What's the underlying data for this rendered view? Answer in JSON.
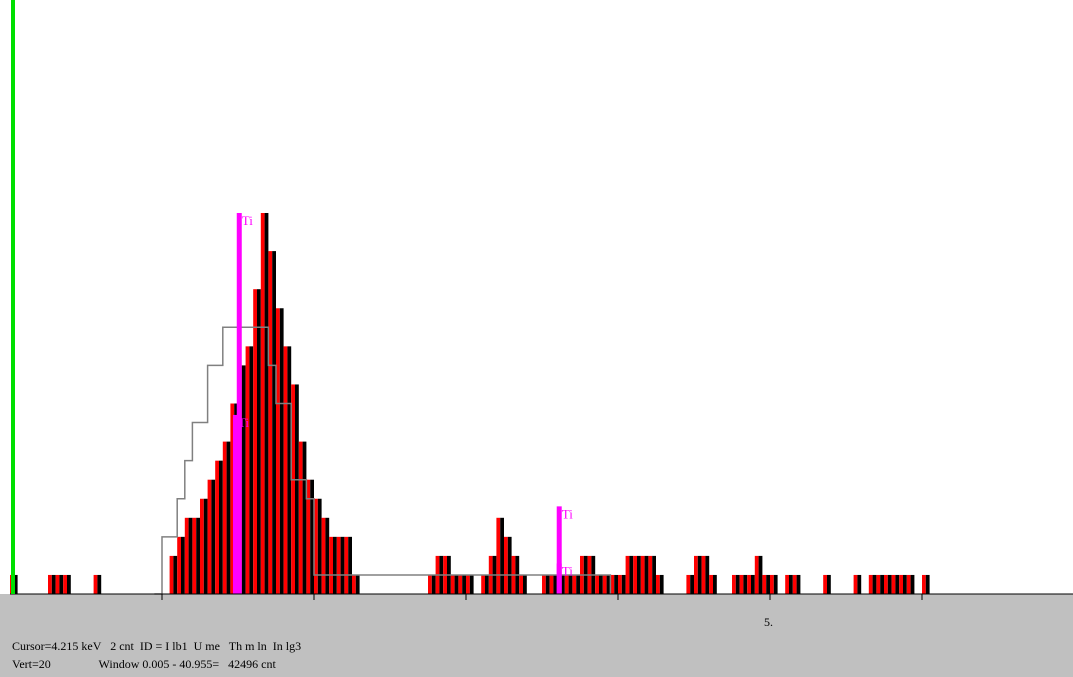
{
  "chart_data": {
    "type": "bar",
    "x_range_keV": [
      0.0,
      5.0
    ],
    "bin_width_keV": 0.05,
    "y_max_counts": 20,
    "spectrum_counts": [
      1,
      0,
      0,
      0,
      0,
      1,
      1,
      1,
      0,
      0,
      0,
      1,
      0,
      0,
      0,
      0,
      0,
      0,
      0,
      0,
      0,
      2,
      3,
      4,
      4,
      5,
      6,
      7,
      8,
      10,
      12,
      13,
      16,
      20,
      18,
      15,
      13,
      11,
      8,
      6,
      5,
      4,
      3,
      3,
      3,
      1,
      0,
      0,
      0,
      0,
      0,
      0,
      0,
      0,
      0,
      1,
      2,
      2,
      1,
      1,
      1,
      0,
      1,
      2,
      4,
      3,
      2,
      1,
      0,
      0,
      1,
      1,
      1,
      1,
      1,
      2,
      2,
      1,
      1,
      1,
      1,
      2,
      2,
      2,
      2,
      1,
      0,
      0,
      0,
      1,
      2,
      2,
      1,
      0,
      0,
      1,
      1,
      1,
      2,
      1,
      1,
      0,
      1,
      1,
      0,
      0,
      0,
      1,
      0,
      0,
      0,
      1,
      0,
      1,
      1,
      1,
      1,
      1,
      1,
      0,
      1
    ],
    "overlay_outline": [
      {
        "x": 0.95,
        "y": 0
      },
      {
        "x": 1.0,
        "y": 3
      },
      {
        "x": 1.1,
        "y": 5
      },
      {
        "x": 1.15,
        "y": 7
      },
      {
        "x": 1.2,
        "y": 9
      },
      {
        "x": 1.3,
        "y": 12
      },
      {
        "x": 1.4,
        "y": 14
      },
      {
        "x": 1.6,
        "y": 14
      },
      {
        "x": 1.7,
        "y": 12
      },
      {
        "x": 1.75,
        "y": 10
      },
      {
        "x": 1.85,
        "y": 6
      },
      {
        "x": 1.95,
        "y": 5
      },
      {
        "x": 2.0,
        "y": 1
      },
      {
        "x": 2.05,
        "y": 1
      },
      {
        "x": 3.2,
        "y": 1
      },
      {
        "x": 3.95,
        "y": 1
      },
      {
        "x": 3.95,
        "y": 0
      }
    ],
    "markers": [
      {
        "label": "Ti",
        "energy": 1.505,
        "counts": 20
      },
      {
        "label": "Ti",
        "energy": 1.48,
        "counts": 9.4
      },
      {
        "label": "Ti",
        "energy": 3.61,
        "counts": 1.6
      },
      {
        "label": "Ti",
        "energy": 3.61,
        "counts": 4.6
      }
    ],
    "x_tick_values": [
      1,
      2,
      3,
      4,
      5,
      6
    ],
    "x_tick_labels": [
      {
        "value": 5,
        "text": "5."
      }
    ],
    "cursor_energy": 0.0
  },
  "status": {
    "line1": "Cursor=4.215 keV   2 cnt  ID = I lb1  U me   Th m ln  In lg3",
    "line2": "Vert=20                Window 0.005 - 40.955=   42496 cnt"
  },
  "colors": {
    "bar_red": "#ff0000",
    "bar_black": "#000000",
    "marker": "#ff00ff",
    "cursor": "#00e000",
    "outline": "#808080",
    "status_bg": "#c0c0c0"
  }
}
